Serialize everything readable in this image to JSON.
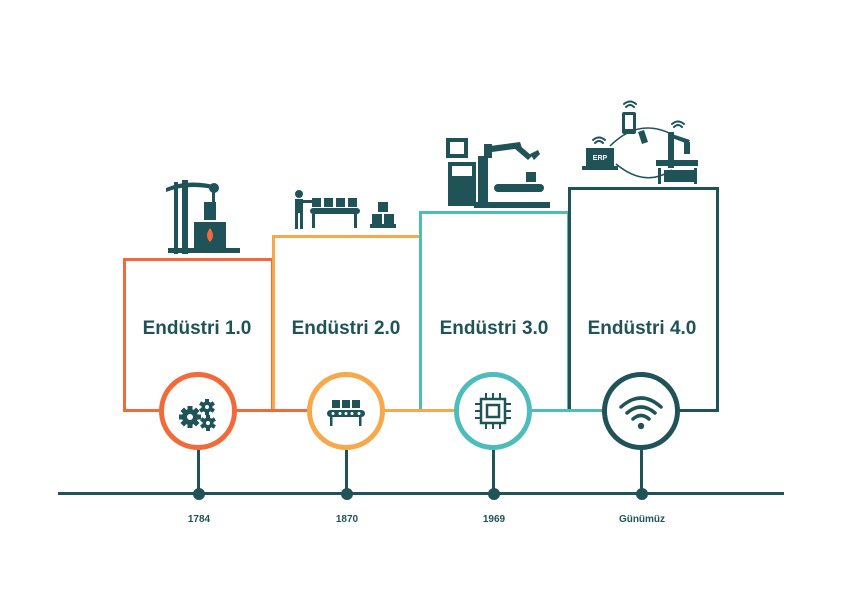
{
  "stages": [
    {
      "label": "Endüstri 1.0",
      "year": "1784",
      "color": "#f26a3a"
    },
    {
      "label": "Endüstri 2.0",
      "year": "1870",
      "color": "#f7a84a"
    },
    {
      "label": "Endüstri 3.0",
      "year": "1969",
      "color": "#4fbcbc"
    },
    {
      "label": "Endüstri 4.0",
      "year": "Günümüz",
      "color": "#1f5358"
    }
  ],
  "icons": {
    "stage1_illustration": "steam-engine-icon",
    "stage2_illustration": "assembly-line-worker-icon",
    "stage3_illustration": "robotic-arm-computer-icon",
    "stage4_illustration": "connected-iot-icon",
    "stage1_circle": "gears-icon",
    "stage2_circle": "conveyor-icon",
    "stage3_circle": "chip-icon",
    "stage4_circle": "wifi-icon"
  },
  "erp_label": "ERP"
}
